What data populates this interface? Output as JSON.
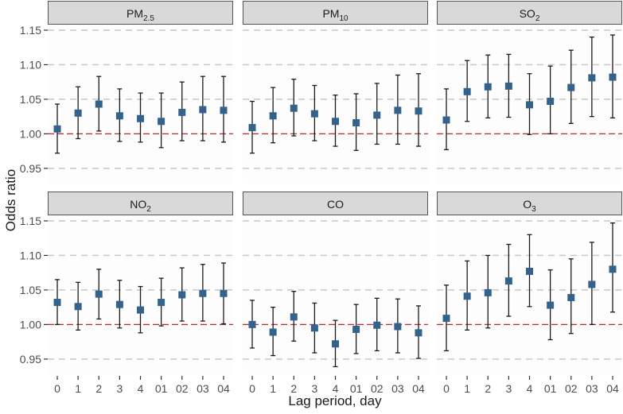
{
  "chart_data": {
    "type": "scatter",
    "subtype": "point-with-error-bars, faceted 2x3",
    "xlabel": "Lag period, day",
    "ylabel": "Odds ratio",
    "categories": [
      "0",
      "1",
      "2",
      "3",
      "4",
      "01",
      "02",
      "03",
      "04"
    ],
    "yticks": [
      "0.95",
      "1.00",
      "1.05",
      "1.10",
      "1.15"
    ],
    "ylim": [
      0.928,
      1.158
    ],
    "reference_line": 1.0,
    "grid": "horizontal dashed",
    "colors": {
      "point": "#33638d",
      "errorbar": "#1a1a1a",
      "reference": "#c0272d",
      "grid": "#c8c8c8",
      "strip": "#d9d9d9"
    },
    "panels": [
      {
        "label": "PM",
        "sub": "2.5",
        "values": [
          1.007,
          1.03,
          1.043,
          1.026,
          1.022,
          1.018,
          1.031,
          1.035,
          1.034
        ],
        "lower": [
          0.972,
          0.993,
          1.004,
          0.989,
          0.988,
          0.98,
          0.99,
          0.99,
          0.988
        ],
        "upper": [
          1.043,
          1.068,
          1.083,
          1.065,
          1.059,
          1.059,
          1.075,
          1.083,
          1.083
        ]
      },
      {
        "label": "PM",
        "sub": "10",
        "values": [
          1.009,
          1.026,
          1.037,
          1.029,
          1.018,
          1.016,
          1.027,
          1.034,
          1.033
        ],
        "lower": [
          0.972,
          0.987,
          0.997,
          0.99,
          0.982,
          0.976,
          0.985,
          0.985,
          0.982
        ],
        "upper": [
          1.047,
          1.067,
          1.079,
          1.07,
          1.056,
          1.058,
          1.073,
          1.085,
          1.087
        ]
      },
      {
        "label": "SO",
        "sub": "2",
        "values": [
          1.02,
          1.061,
          1.068,
          1.069,
          1.042,
          1.047,
          1.067,
          1.081,
          1.082
        ],
        "lower": [
          0.977,
          1.018,
          1.023,
          1.024,
          0.999,
          1.0,
          1.015,
          1.025,
          1.023
        ],
        "upper": [
          1.065,
          1.106,
          1.114,
          1.115,
          1.087,
          1.098,
          1.121,
          1.14,
          1.143
        ]
      },
      {
        "label": "NO",
        "sub": "2",
        "values": [
          1.032,
          1.026,
          1.044,
          1.029,
          1.021,
          1.032,
          1.043,
          1.045,
          1.045
        ],
        "lower": [
          1.0,
          0.992,
          1.008,
          0.995,
          0.988,
          0.998,
          1.005,
          1.005,
          1.001
        ],
        "upper": [
          1.065,
          1.061,
          1.08,
          1.064,
          1.055,
          1.067,
          1.082,
          1.087,
          1.089
        ]
      },
      {
        "label": "CO",
        "sub": "",
        "values": [
          1.0,
          0.989,
          1.011,
          0.995,
          0.972,
          0.993,
          0.999,
          0.997,
          0.988
        ],
        "lower": [
          0.966,
          0.955,
          0.976,
          0.959,
          0.939,
          0.958,
          0.962,
          0.959,
          0.951
        ],
        "upper": [
          1.035,
          1.025,
          1.048,
          1.031,
          1.006,
          1.029,
          1.038,
          1.037,
          1.027
        ]
      },
      {
        "label": "O",
        "sub": "3",
        "values": [
          1.009,
          1.041,
          1.046,
          1.063,
          1.077,
          1.028,
          1.039,
          1.058,
          1.08
        ],
        "lower": [
          0.962,
          0.992,
          0.995,
          1.012,
          1.026,
          0.978,
          0.987,
          1.0,
          1.018
        ],
        "upper": [
          1.057,
          1.092,
          1.1,
          1.116,
          1.13,
          1.079,
          1.095,
          1.119,
          1.147
        ]
      }
    ]
  }
}
